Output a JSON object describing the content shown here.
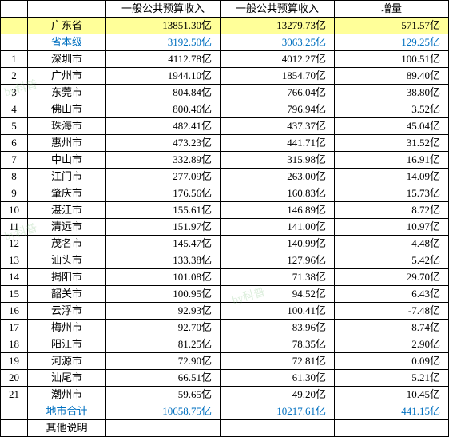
{
  "headers": {
    "col2": "",
    "col3": "一般公共预算收入",
    "col4": "一般公共预算收入",
    "col5": "增量"
  },
  "province": {
    "rank": "",
    "city": "广东省",
    "v1": "13851.30亿",
    "v2": "13279.73亿",
    "v3": "571.57亿"
  },
  "provincial_level": {
    "rank": "",
    "city": "省本级",
    "v1": "3192.50亿",
    "v2": "3063.25亿",
    "v3": "129.25亿"
  },
  "rows": [
    {
      "rank": "1",
      "city": "深圳市",
      "v1": "4112.78亿",
      "v2": "4012.27亿",
      "v3": "100.51亿"
    },
    {
      "rank": "2",
      "city": "广州市",
      "v1": "1944.10亿",
      "v2": "1854.70亿",
      "v3": "89.40亿"
    },
    {
      "rank": "3",
      "city": "东莞市",
      "v1": "804.84亿",
      "v2": "766.04亿",
      "v3": "38.80亿"
    },
    {
      "rank": "4",
      "city": "佛山市",
      "v1": "800.46亿",
      "v2": "796.94亿",
      "v3": "3.52亿"
    },
    {
      "rank": "5",
      "city": "珠海市",
      "v1": "482.41亿",
      "v2": "437.37亿",
      "v3": "45.04亿"
    },
    {
      "rank": "6",
      "city": "惠州市",
      "v1": "473.23亿",
      "v2": "441.71亿",
      "v3": "31.52亿"
    },
    {
      "rank": "7",
      "city": "中山市",
      "v1": "332.89亿",
      "v2": "315.98亿",
      "v3": "16.91亿"
    },
    {
      "rank": "8",
      "city": "江门市",
      "v1": "277.09亿",
      "v2": "263.00亿",
      "v3": "14.09亿"
    },
    {
      "rank": "9",
      "city": "肇庆市",
      "v1": "176.56亿",
      "v2": "160.83亿",
      "v3": "15.73亿"
    },
    {
      "rank": "10",
      "city": "湛江市",
      "v1": "155.61亿",
      "v2": "146.89亿",
      "v3": "8.72亿"
    },
    {
      "rank": "11",
      "city": "清远市",
      "v1": "151.97亿",
      "v2": "141.00亿",
      "v3": "10.97亿"
    },
    {
      "rank": "12",
      "city": "茂名市",
      "v1": "145.47亿",
      "v2": "140.99亿",
      "v3": "4.48亿"
    },
    {
      "rank": "13",
      "city": "汕头市",
      "v1": "133.38亿",
      "v2": "127.96亿",
      "v3": "5.42亿"
    },
    {
      "rank": "14",
      "city": "揭阳市",
      "v1": "101.08亿",
      "v2": "71.38亿",
      "v3": "29.70亿"
    },
    {
      "rank": "15",
      "city": "韶关市",
      "v1": "100.95亿",
      "v2": "94.52亿",
      "v3": "6.43亿"
    },
    {
      "rank": "16",
      "city": "云浮市",
      "v1": "92.93亿",
      "v2": "100.41亿",
      "v3": "-7.48亿"
    },
    {
      "rank": "17",
      "city": "梅州市",
      "v1": "92.70亿",
      "v2": "83.96亿",
      "v3": "8.74亿"
    },
    {
      "rank": "18",
      "city": "阳江市",
      "v1": "81.25亿",
      "v2": "78.35亿",
      "v3": "2.90亿"
    },
    {
      "rank": "19",
      "city": "河源市",
      "v1": "72.90亿",
      "v2": "72.81亿",
      "v3": "0.09亿"
    },
    {
      "rank": "20",
      "city": "汕尾市",
      "v1": "66.51亿",
      "v2": "61.30亿",
      "v3": "5.21亿"
    },
    {
      "rank": "21",
      "city": "潮州市",
      "v1": "59.65亿",
      "v2": "49.20亿",
      "v3": "10.45亿"
    }
  ],
  "total": {
    "rank": "",
    "city": "地市合计",
    "v1": "10658.75亿",
    "v2": "10217.61亿",
    "v3": "441.15亿"
  },
  "footer": {
    "city": "其他说明"
  },
  "watermark": "by科普"
}
